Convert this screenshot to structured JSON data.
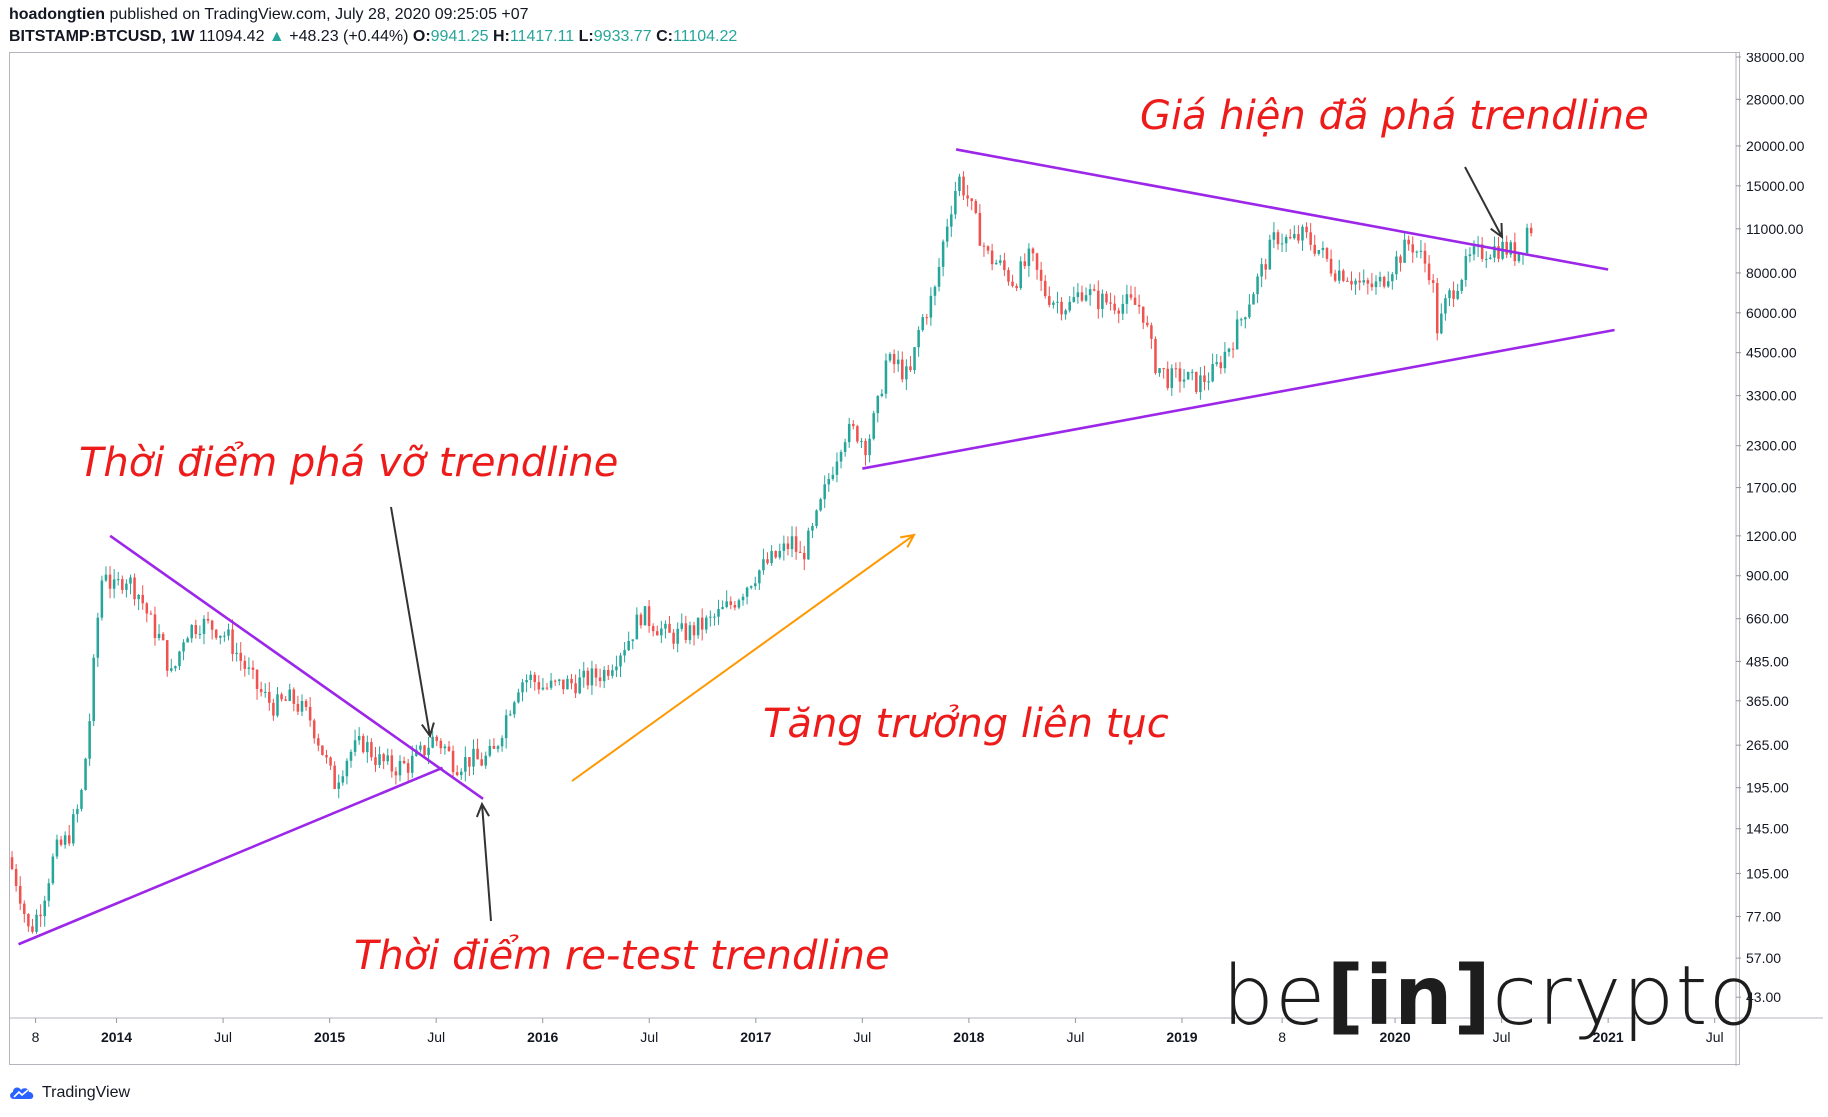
{
  "header": {
    "author": "hoadongtien",
    "published_text": "published on TradingView.com, July 28, 2020 09:25:05 +07",
    "symbol": "BITSTAMP:BTCUSD, 1W",
    "last": "11094.42",
    "change": "+48.23 (+0.44%)",
    "o_label": "O:",
    "o_value": "9941.25",
    "h_label": "H:",
    "h_value": "11417.11",
    "l_label": "L:",
    "l_value": "9933.77",
    "c_label": "C:",
    "c_value": "11104.22"
  },
  "annotations": {
    "breakout": "Thời điểm phá vỡ trendline",
    "retest": "Thời điểm re-test trendline",
    "growth": "Tăng trưởng liên tục",
    "current": "Giá hiện đã phá trendline"
  },
  "brand": {
    "pre": "be",
    "mid": "[in]",
    "post": "crypto"
  },
  "footer": {
    "logo_text": "TradingView"
  },
  "colors": {
    "up": "#26a69a",
    "down": "#ef5350",
    "trendline": "#9c27e8",
    "arrow_orange": "#ff9800",
    "arrow_black": "#333333",
    "annotation": "#ee1b1b"
  },
  "chart_data": {
    "type": "candlestick",
    "scale": "log",
    "ylim": [
      37,
      38000
    ],
    "y_ticks": [
      "38000.00",
      "28000.00",
      "20000.00",
      "15000.00",
      "11000.00",
      "8000.00",
      "6000.00",
      "4500.00",
      "3300.00",
      "2300.00",
      "1700.00",
      "1200.00",
      "900.00",
      "660.00",
      "485.00",
      "365.00",
      "265.00",
      "195.00",
      "145.00",
      "105.00",
      "77.00",
      "57.00",
      "43.00"
    ],
    "y_tick_values": [
      38000,
      28000,
      20000,
      15000,
      11000,
      8000,
      6000,
      4500,
      3300,
      2300,
      1700,
      1200,
      900,
      660,
      485,
      365,
      265,
      195,
      145,
      105,
      77,
      57,
      43
    ],
    "x_ticks": [
      "8",
      "2014",
      "Jul",
      "2015",
      "Jul",
      "2016",
      "Jul",
      "2017",
      "Jul",
      "2018",
      "Jul",
      "2019",
      "8",
      "2020",
      "Jul",
      "2021",
      "Jul"
    ],
    "x_tick_bold": [
      false,
      true,
      false,
      true,
      false,
      true,
      false,
      true,
      false,
      true,
      false,
      true,
      false,
      true,
      false,
      true,
      false
    ],
    "x_tick_dates": [
      2013.62,
      2014.0,
      2014.5,
      2015.0,
      2015.5,
      2016.0,
      2016.5,
      2017.0,
      2017.5,
      2018.0,
      2018.5,
      2019.0,
      2019.47,
      2020.0,
      2020.5,
      2021.0,
      2021.5
    ],
    "x_range": [
      2013.5,
      2021.6
    ],
    "trendlines": [
      {
        "name": "t1-resistance",
        "from": [
          2013.97,
          1200
        ],
        "to": [
          2015.72,
          180
        ]
      },
      {
        "name": "t1-support",
        "from": [
          2013.54,
          63
        ],
        "to": [
          2015.53,
          225
        ]
      },
      {
        "name": "t2-resistance",
        "from": [
          2017.94,
          19500
        ],
        "to": [
          2021.0,
          8200
        ]
      },
      {
        "name": "t2-support",
        "from": [
          2017.5,
          1950
        ],
        "to": [
          2021.03,
          5300
        ]
      }
    ],
    "price_path": [
      [
        2013.5,
        118
      ],
      [
        2013.55,
        95
      ],
      [
        2013.6,
        68
      ],
      [
        2013.66,
        85
      ],
      [
        2013.72,
        122
      ],
      [
        2013.78,
        135
      ],
      [
        2013.84,
        175
      ],
      [
        2013.88,
        300
      ],
      [
        2013.92,
        650
      ],
      [
        2013.95,
        1000
      ],
      [
        2013.99,
        800
      ],
      [
        2014.05,
        900
      ],
      [
        2014.12,
        780
      ],
      [
        2014.17,
        640
      ],
      [
        2014.22,
        560
      ],
      [
        2014.27,
        430
      ],
      [
        2014.33,
        600
      ],
      [
        2014.4,
        640
      ],
      [
        2014.47,
        620
      ],
      [
        2014.53,
        580
      ],
      [
        2014.6,
        480
      ],
      [
        2014.68,
        390
      ],
      [
        2014.75,
        350
      ],
      [
        2014.83,
        370
      ],
      [
        2014.92,
        320
      ],
      [
        2014.97,
        260
      ],
      [
        2015.03,
        200
      ],
      [
        2015.1,
        250
      ],
      [
        2015.17,
        270
      ],
      [
        2015.23,
        240
      ],
      [
        2015.3,
        225
      ],
      [
        2015.38,
        230
      ],
      [
        2015.44,
        250
      ],
      [
        2015.5,
        280
      ],
      [
        2015.55,
        260
      ],
      [
        2015.6,
        230
      ],
      [
        2015.67,
        240
      ],
      [
        2015.72,
        235
      ],
      [
        2015.78,
        250
      ],
      [
        2015.84,
        330
      ],
      [
        2015.9,
        420
      ],
      [
        2015.95,
        430
      ],
      [
        2016.02,
        400
      ],
      [
        2016.1,
        410
      ],
      [
        2016.2,
        420
      ],
      [
        2016.3,
        450
      ],
      [
        2016.42,
        580
      ],
      [
        2016.47,
        680
      ],
      [
        2016.53,
        640
      ],
      [
        2016.6,
        580
      ],
      [
        2016.7,
        600
      ],
      [
        2016.8,
        650
      ],
      [
        2016.9,
        740
      ],
      [
        2017.0,
        900
      ],
      [
        2017.06,
        980
      ],
      [
        2017.12,
        1050
      ],
      [
        2017.18,
        1150
      ],
      [
        2017.22,
        1020
      ],
      [
        2017.28,
        1250
      ],
      [
        2017.35,
        1800
      ],
      [
        2017.42,
        2500
      ],
      [
        2017.48,
        2550
      ],
      [
        2017.53,
        2300
      ],
      [
        2017.58,
        3000
      ],
      [
        2017.62,
        4200
      ],
      [
        2017.68,
        4100
      ],
      [
        2017.73,
        3700
      ],
      [
        2017.78,
        5500
      ],
      [
        2017.85,
        7000
      ],
      [
        2017.9,
        11000
      ],
      [
        2017.96,
        16000
      ],
      [
        2018.0,
        14000
      ],
      [
        2018.05,
        11000
      ],
      [
        2018.1,
        9000
      ],
      [
        2018.15,
        8500
      ],
      [
        2018.22,
        7500
      ],
      [
        2018.3,
        9000
      ],
      [
        2018.36,
        7000
      ],
      [
        2018.42,
        6500
      ],
      [
        2018.48,
        6300
      ],
      [
        2018.55,
        7200
      ],
      [
        2018.6,
        6600
      ],
      [
        2018.66,
        6500
      ],
      [
        2018.75,
        6400
      ],
      [
        2018.82,
        6300
      ],
      [
        2018.88,
        4200
      ],
      [
        2018.95,
        3700
      ],
      [
        2019.0,
        3800
      ],
      [
        2019.08,
        3600
      ],
      [
        2019.16,
        3900
      ],
      [
        2019.25,
        5000
      ],
      [
        2019.32,
        6500
      ],
      [
        2019.38,
        8000
      ],
      [
        2019.45,
        10500
      ],
      [
        2019.52,
        10000
      ],
      [
        2019.58,
        10500
      ],
      [
        2019.65,
        9500
      ],
      [
        2019.72,
        8200
      ],
      [
        2019.78,
        8000
      ],
      [
        2019.86,
        7200
      ],
      [
        2019.93,
        7300
      ],
      [
        2020.0,
        8500
      ],
      [
        2020.08,
        10000
      ],
      [
        2020.13,
        9000
      ],
      [
        2020.18,
        8000
      ],
      [
        2020.21,
        5200
      ],
      [
        2020.25,
        6500
      ],
      [
        2020.3,
        7500
      ],
      [
        2020.37,
        9000
      ],
      [
        2020.45,
        9500
      ],
      [
        2020.52,
        9600
      ],
      [
        2020.57,
        9200
      ],
      [
        2020.6,
        9400
      ],
      [
        2020.63,
        11100
      ]
    ]
  }
}
